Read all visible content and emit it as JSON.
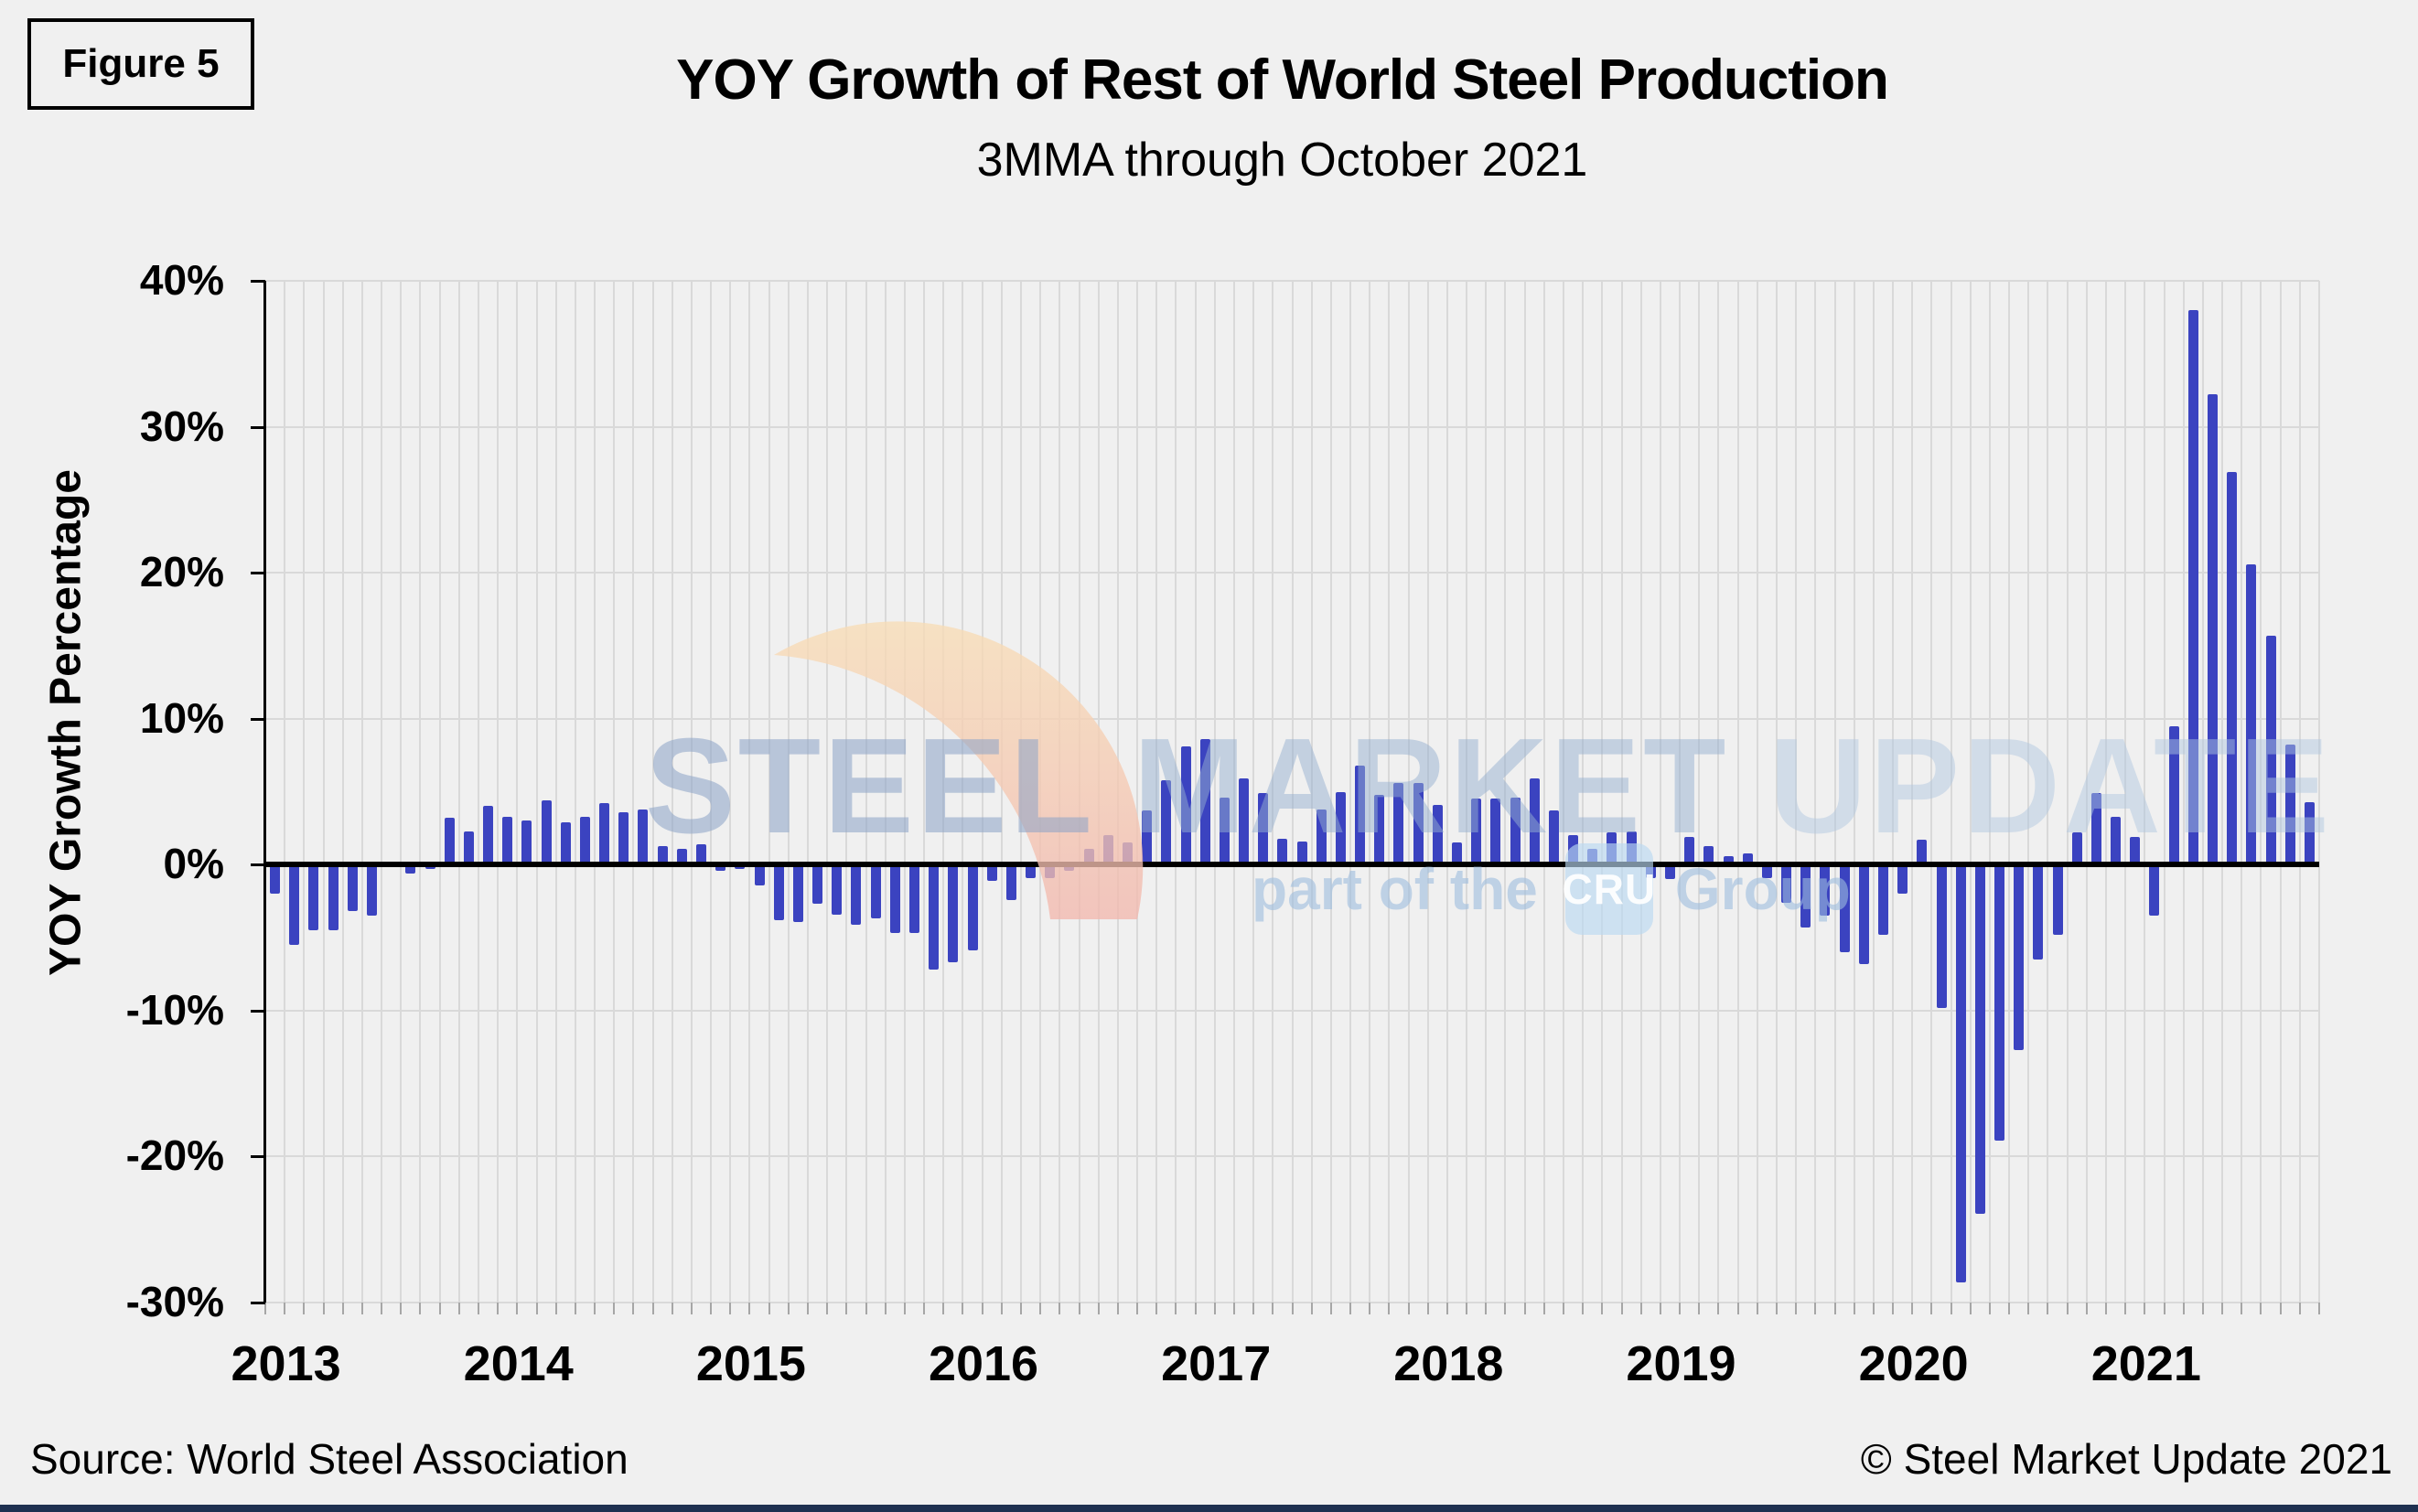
{
  "figure_label": "Figure 5",
  "title": "YOY Growth of Rest of World Steel Production",
  "subtitle": "3MMA through October 2021",
  "y_axis": {
    "title": "YOY Growth Percentage",
    "tick_labels": [
      "40%",
      "30%",
      "20%",
      "10%",
      "0%",
      "-10%",
      "-20%",
      "-30%"
    ],
    "tick_values": [
      40,
      30,
      20,
      10,
      0,
      -10,
      -20,
      -30
    ]
  },
  "x_axis": {
    "year_labels": [
      "2013",
      "2014",
      "2015",
      "2016",
      "2017",
      "2018",
      "2019",
      "2020",
      "2021"
    ]
  },
  "watermark": {
    "word1": "STEEL",
    "word2": "MARKET",
    "word3": "UPDATE",
    "line2_prefix": "part of the",
    "badge": "CRU",
    "line2_suffix": "Group"
  },
  "footer": {
    "source": "Source: World Steel Association",
    "copyright": "© Steel Market Update 2021"
  },
  "colors": {
    "bar": "#3b43c0",
    "background": "#f0f0f0",
    "gridline": "#d9d9d9",
    "zero_line": "#000000",
    "bottom_strip": "#1e3050",
    "crescent_top": "#f8ddb6",
    "crescent_bottom": "#f2b8ae"
  },
  "chart_data": {
    "type": "bar",
    "title": "YOY Growth of Rest of World Steel Production",
    "subtitle": "3MMA through October 2021",
    "ylabel": "YOY Growth Percentage",
    "unit": "percent",
    "ylim": [
      -30,
      40
    ],
    "grid": true,
    "x_start": "2013-01",
    "x_end": "2021-10",
    "years": [
      {
        "year": "2013",
        "values": [
          -2.0,
          -5.5,
          -4.5,
          -4.5,
          -3.2,
          -3.5,
          0.0,
          -0.6,
          -0.3,
          3.2,
          2.3,
          4.0
        ]
      },
      {
        "year": "2014",
        "values": [
          3.3,
          3.0,
          4.4,
          2.9,
          3.3,
          4.2,
          3.6,
          3.8,
          1.3,
          1.1,
          1.4,
          -0.4
        ]
      },
      {
        "year": "2015",
        "values": [
          -0.3,
          -1.4,
          -3.8,
          -3.9,
          -2.7,
          -3.4,
          -4.1,
          -3.7,
          -4.7,
          -4.7,
          -7.2,
          -6.7
        ]
      },
      {
        "year": "2016",
        "values": [
          -5.9,
          -1.1,
          -2.4,
          -0.9,
          -0.9,
          -0.4,
          1.1,
          2.0,
          1.5,
          3.7,
          5.8,
          8.1
        ]
      },
      {
        "year": "2017",
        "values": [
          8.6,
          4.6,
          5.9,
          4.9,
          1.8,
          1.6,
          3.8,
          5.0,
          6.8,
          4.8,
          5.6,
          5.6
        ]
      },
      {
        "year": "2018",
        "values": [
          4.1,
          1.5,
          4.5,
          4.5,
          4.6,
          5.9,
          3.7,
          2.0,
          1.1,
          2.2,
          2.3,
          -0.9
        ]
      },
      {
        "year": "2019",
        "values": [
          -1.0,
          1.9,
          1.3,
          0.6,
          0.8,
          -0.9,
          -2.6,
          -4.3,
          -3.5,
          -6.0,
          -6.8,
          -4.8
        ]
      },
      {
        "year": "2020",
        "values": [
          -2.0,
          1.7,
          -9.8,
          -28.6,
          -23.9,
          -18.9,
          -12.7,
          -6.5,
          -4.8,
          2.2,
          4.9,
          3.3
        ]
      },
      {
        "year": "2021",
        "values": [
          1.9,
          -3.5,
          9.5,
          38.0,
          32.2,
          26.9,
          20.6,
          15.7,
          8.2,
          4.3
        ]
      }
    ]
  }
}
